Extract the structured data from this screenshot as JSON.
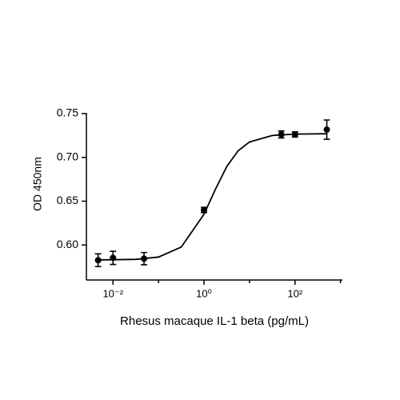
{
  "chart_data": {
    "type": "scatter",
    "x_label": "Rhesus macaque IL-1 beta (pg/mL)",
    "y_label": "OD 450nm",
    "x_log": true,
    "xlim": [
      0.0026,
      1100
    ],
    "ylim": [
      0.56,
      0.75
    ],
    "xticks": [
      {
        "value": 0.01,
        "label": "10⁻²"
      },
      {
        "value": 1,
        "label": "10⁰"
      },
      {
        "value": 100,
        "label": "10²"
      }
    ],
    "xminor_ticks": [
      0.001,
      0.1,
      10,
      1000
    ],
    "yticks": [
      {
        "value": 0.6,
        "label": "0.60"
      },
      {
        "value": 0.65,
        "label": "0.65"
      },
      {
        "value": 0.7,
        "label": "0.70"
      },
      {
        "value": 0.75,
        "label": "0.75"
      }
    ],
    "color": "#000000",
    "x": [
      0.0047,
      0.01,
      0.048,
      1,
      50,
      100,
      500
    ],
    "values": [
      0.5826,
      0.5853,
      0.5844,
      0.64,
      0.7262,
      0.7262,
      0.7317
    ],
    "errors": [
      0.0073,
      0.0075,
      0.007,
      0.003,
      0.004,
      0.003,
      0.011
    ],
    "curve": {
      "x": [
        0.0047,
        0.01,
        0.0316,
        0.1,
        0.316,
        1,
        1.78,
        3.16,
        5.62,
        10,
        31.6,
        100,
        500
      ],
      "y": [
        0.583,
        0.5831,
        0.5836,
        0.5862,
        0.5976,
        0.6351,
        0.6636,
        0.6895,
        0.7075,
        0.7176,
        0.725,
        0.7266,
        0.727
      ]
    }
  }
}
